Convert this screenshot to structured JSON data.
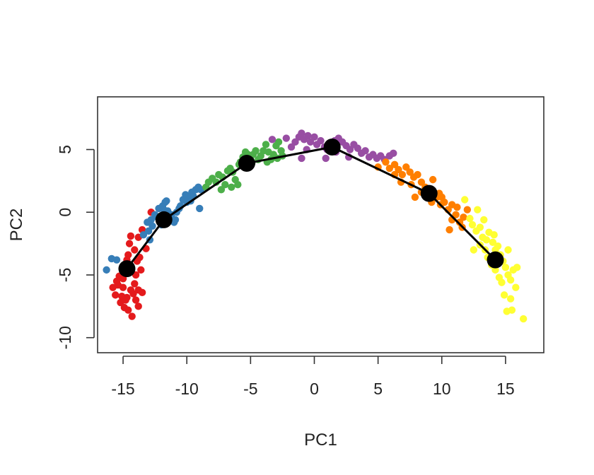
{
  "chart_data": {
    "type": "scatter",
    "xlabel": "PC1",
    "ylabel": "PC2",
    "xlim": [
      -17,
      18
    ],
    "ylim": [
      -11.2,
      9.2
    ],
    "x_ticks": [
      -15,
      -10,
      -5,
      0,
      5,
      10,
      15
    ],
    "x_tick_labels": [
      "-15",
      "-10",
      "-5",
      "0",
      "5",
      "10",
      "15"
    ],
    "y_ticks": [
      -10,
      -5,
      0,
      5
    ],
    "y_tick_labels": [
      "-10",
      "-5",
      "0",
      "5"
    ],
    "grid": false,
    "legend": "none",
    "series": [
      {
        "color": "#e41a1c",
        "points": [
          [
            -15.8,
            -6.0
          ],
          [
            -15.5,
            -5.5
          ],
          [
            -15.6,
            -6.6
          ],
          [
            -15.2,
            -7.2
          ],
          [
            -15.0,
            -6.0
          ],
          [
            -14.8,
            -7.0
          ],
          [
            -14.6,
            -7.8
          ],
          [
            -14.3,
            -8.3
          ],
          [
            -14.2,
            -6.5
          ],
          [
            -14.0,
            -7.0
          ],
          [
            -13.8,
            -6.2
          ],
          [
            -14.4,
            -6.2
          ],
          [
            -15.0,
            -5.3
          ],
          [
            -14.9,
            -4.8
          ],
          [
            -15.4,
            -5.8
          ],
          [
            -14.1,
            -5.7
          ],
          [
            -13.6,
            -4.6
          ],
          [
            -13.7,
            -3.6
          ],
          [
            -14.1,
            -3.0
          ],
          [
            -14.5,
            -2.5
          ],
          [
            -13.8,
            -2.0
          ],
          [
            -14.4,
            -1.9
          ],
          [
            -13.5,
            -1.4
          ],
          [
            -13.2,
            -2.9
          ],
          [
            -13.9,
            -3.9
          ],
          [
            -14.7,
            -3.8
          ],
          [
            -14.6,
            -3.4
          ],
          [
            -13.5,
            -6.4
          ],
          [
            -12.8,
            0.0
          ],
          [
            -15.1,
            -6.7
          ],
          [
            -14.5,
            -4.3
          ],
          [
            -14.0,
            -5.0
          ],
          [
            -15.3,
            -5.1
          ],
          [
            -14.7,
            -6.8
          ],
          [
            -13.8,
            -7.5
          ],
          [
            -14.9,
            -7.6
          ]
        ]
      },
      {
        "color": "#377eb8",
        "points": [
          [
            -16.3,
            -4.6
          ],
          [
            -15.9,
            -3.7
          ],
          [
            -15.5,
            -3.8
          ],
          [
            -13.4,
            -1.8
          ],
          [
            -13.0,
            -1.5
          ],
          [
            -13.1,
            -0.8
          ],
          [
            -12.8,
            -0.6
          ],
          [
            -12.5,
            -0.2
          ],
          [
            -12.2,
            0.3
          ],
          [
            -11.9,
            0.5
          ],
          [
            -11.7,
            0.8
          ],
          [
            -11.5,
            0.1
          ],
          [
            -11.3,
            -0.4
          ],
          [
            -11.0,
            -0.8
          ],
          [
            -10.9,
            -0.6
          ],
          [
            -10.8,
            0.0
          ],
          [
            -10.5,
            0.5
          ],
          [
            -10.3,
            1.0
          ],
          [
            -10.1,
            1.4
          ],
          [
            -9.9,
            1.2
          ],
          [
            -9.7,
            0.9
          ],
          [
            -9.5,
            1.3
          ],
          [
            -9.3,
            1.8
          ],
          [
            -9.1,
            2.0
          ],
          [
            -8.9,
            1.8
          ],
          [
            -9.6,
            1.6
          ],
          [
            -10.6,
            0.3
          ],
          [
            -11.6,
            0.9
          ],
          [
            -12.0,
            -1.0
          ],
          [
            -12.7,
            -1.1
          ],
          [
            -9.0,
            0.3
          ],
          [
            -12.3,
            -0.4
          ],
          [
            -11.2,
            -0.2
          ],
          [
            -10.0,
            0.8
          ],
          [
            -12.9,
            -2.2
          ],
          [
            -11.8,
            0.2
          ]
        ]
      },
      {
        "color": "#4daf4a",
        "points": [
          [
            -8.5,
            2.0
          ],
          [
            -8.3,
            2.4
          ],
          [
            -8.0,
            2.7
          ],
          [
            -7.7,
            2.4
          ],
          [
            -7.5,
            3.0
          ],
          [
            -7.2,
            2.8
          ],
          [
            -7.0,
            2.2
          ],
          [
            -6.8,
            3.3
          ],
          [
            -6.6,
            3.5
          ],
          [
            -6.4,
            3.2
          ],
          [
            -6.2,
            2.6
          ],
          [
            -6.0,
            2.2
          ],
          [
            -5.8,
            4.0
          ],
          [
            -5.6,
            4.4
          ],
          [
            -5.4,
            4.8
          ],
          [
            -5.2,
            4.6
          ],
          [
            -5.0,
            4.2
          ],
          [
            -4.8,
            4.6
          ],
          [
            -4.6,
            4.9
          ],
          [
            -4.4,
            4.2
          ],
          [
            -4.2,
            4.5
          ],
          [
            -4.0,
            4.9
          ],
          [
            -3.8,
            5.4
          ],
          [
            -3.6,
            4.8
          ],
          [
            -3.4,
            4.2
          ],
          [
            -3.2,
            4.6
          ],
          [
            -3.0,
            5.3
          ],
          [
            -2.8,
            5.6
          ],
          [
            -2.6,
            4.9
          ],
          [
            -2.5,
            4.5
          ],
          [
            -7.3,
            1.8
          ],
          [
            -6.5,
            2.0
          ],
          [
            -5.9,
            3.8
          ],
          [
            -4.9,
            3.9
          ],
          [
            -3.7,
            4.0
          ],
          [
            -2.9,
            4.3
          ]
        ]
      },
      {
        "color": "#984ea3",
        "points": [
          [
            -3.3,
            5.8
          ],
          [
            -2.2,
            5.9
          ],
          [
            -1.8,
            5.2
          ],
          [
            -1.5,
            5.6
          ],
          [
            -1.2,
            6.0
          ],
          [
            -1.0,
            6.3
          ],
          [
            -0.8,
            5.8
          ],
          [
            -0.5,
            6.1
          ],
          [
            -0.3,
            5.6
          ],
          [
            0.0,
            6.0
          ],
          [
            0.2,
            5.4
          ],
          [
            0.5,
            5.7
          ],
          [
            0.8,
            5.2
          ],
          [
            1.0,
            5.0
          ],
          [
            1.3,
            5.5
          ],
          [
            1.6,
            5.7
          ],
          [
            1.9,
            5.9
          ],
          [
            2.2,
            5.6
          ],
          [
            2.5,
            5.3
          ],
          [
            2.8,
            5.0
          ],
          [
            3.1,
            5.4
          ],
          [
            3.4,
            5.1
          ],
          [
            3.7,
            4.7
          ],
          [
            4.0,
            4.9
          ],
          [
            4.3,
            4.4
          ],
          [
            4.6,
            4.6
          ],
          [
            4.9,
            4.3
          ],
          [
            5.2,
            4.5
          ],
          [
            5.5,
            4.2
          ],
          [
            5.9,
            4.5
          ],
          [
            6.2,
            4.7
          ],
          [
            -1.0,
            4.3
          ],
          [
            0.9,
            4.3
          ],
          [
            2.7,
            4.4
          ],
          [
            -0.6,
            5.0
          ],
          [
            1.7,
            4.8
          ]
        ]
      },
      {
        "color": "#ff7f00",
        "points": [
          [
            5.0,
            3.6
          ],
          [
            5.6,
            4.0
          ],
          [
            5.9,
            3.5
          ],
          [
            6.3,
            3.8
          ],
          [
            6.6,
            3.4
          ],
          [
            6.9,
            3.0
          ],
          [
            7.2,
            3.6
          ],
          [
            7.5,
            3.2
          ],
          [
            7.8,
            2.8
          ],
          [
            8.1,
            3.0
          ],
          [
            8.4,
            2.4
          ],
          [
            8.7,
            2.0
          ],
          [
            9.0,
            1.8
          ],
          [
            9.3,
            2.6
          ],
          [
            9.6,
            1.2
          ],
          [
            9.9,
            0.6
          ],
          [
            10.2,
            0.8
          ],
          [
            10.5,
            0.2
          ],
          [
            10.8,
            0.6
          ],
          [
            11.1,
            -0.2
          ],
          [
            11.4,
            -0.8
          ],
          [
            11.7,
            -0.4
          ],
          [
            12.0,
            0.2
          ],
          [
            11.6,
            -1.2
          ],
          [
            6.8,
            2.4
          ],
          [
            7.6,
            2.2
          ],
          [
            8.4,
            1.6
          ],
          [
            9.2,
            0.8
          ],
          [
            10.0,
            1.2
          ],
          [
            10.8,
            -0.6
          ],
          [
            6.3,
            3.0
          ],
          [
            7.9,
            1.2
          ],
          [
            11.2,
            0.4
          ],
          [
            10.6,
            -1.4
          ],
          [
            8.8,
            1.4
          ],
          [
            9.8,
            1.5
          ]
        ]
      },
      {
        "color": "#ffff33",
        "points": [
          [
            11.8,
            1.0
          ],
          [
            12.2,
            -0.5
          ],
          [
            12.4,
            -1.0
          ],
          [
            12.7,
            -1.5
          ],
          [
            13.0,
            -1.2
          ],
          [
            13.2,
            -2.0
          ],
          [
            13.5,
            -2.2
          ],
          [
            13.7,
            -1.6
          ],
          [
            14.0,
            -2.4
          ],
          [
            14.2,
            -3.0
          ],
          [
            14.4,
            -2.7
          ],
          [
            14.6,
            -3.4
          ],
          [
            14.8,
            -3.9
          ],
          [
            15.0,
            -4.4
          ],
          [
            15.2,
            -5.0
          ],
          [
            15.4,
            -5.4
          ],
          [
            15.6,
            -4.6
          ],
          [
            15.8,
            -6.0
          ],
          [
            15.5,
            -7.8
          ],
          [
            16.4,
            -8.5
          ],
          [
            15.1,
            -7.9
          ],
          [
            14.9,
            -6.6
          ],
          [
            14.7,
            -5.6
          ],
          [
            14.5,
            -5.2
          ],
          [
            14.2,
            -4.6
          ],
          [
            13.9,
            -4.2
          ],
          [
            13.6,
            -3.6
          ],
          [
            13.4,
            -3.0
          ],
          [
            13.0,
            -2.6
          ],
          [
            12.5,
            -3.0
          ],
          [
            12.8,
            0.2
          ],
          [
            13.3,
            -0.6
          ],
          [
            14.1,
            -1.8
          ],
          [
            15.2,
            -3.0
          ],
          [
            15.9,
            -4.4
          ],
          [
            15.4,
            -6.9
          ]
        ]
      }
    ],
    "curve": {
      "color": "#000000",
      "points": [
        [
          -14.7,
          -4.5
        ],
        [
          -11.8,
          -0.6
        ],
        [
          -5.3,
          3.9
        ],
        [
          1.4,
          5.2
        ],
        [
          9.0,
          1.5
        ],
        [
          14.2,
          -3.8
        ]
      ]
    }
  }
}
